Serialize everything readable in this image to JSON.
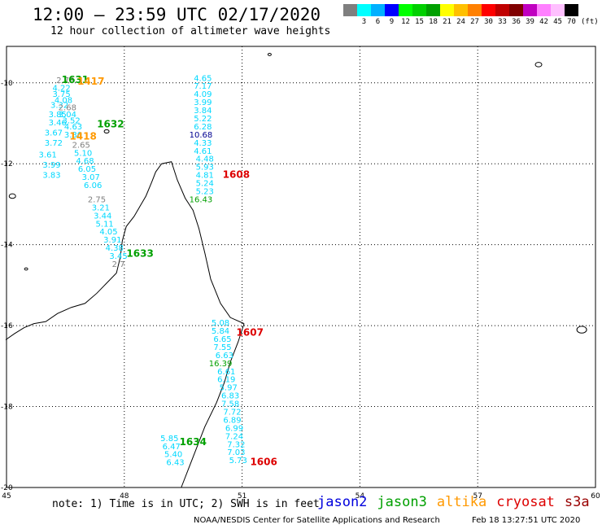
{
  "header": {
    "title": "12:00 – 23:59 UTC 02/17/2020",
    "subtitle": "12 hour collection of altimeter wave heights"
  },
  "colorbar": {
    "colors": [
      "#7f7f7f",
      "#00ffff",
      "#00b0ff",
      "#0000ff",
      "#00ff00",
      "#00d000",
      "#00a000",
      "#ffff00",
      "#ffc000",
      "#ff8000",
      "#ff0000",
      "#c00000",
      "#800000",
      "#c000c0",
      "#ff80ff",
      "#ffc0ff",
      "#000000"
    ],
    "labels": [
      "",
      "3",
      "6",
      "9",
      "12",
      "15",
      "18",
      "21",
      "24",
      "27",
      "30",
      "33",
      "36",
      "39",
      "42",
      "45",
      "70"
    ],
    "unit": "(ft)"
  },
  "axes": {
    "lon_ticks": [
      "45",
      "48",
      "51",
      "54",
      "57",
      "60"
    ],
    "lat_ticks": [
      "-10",
      "-12",
      "-14",
      "-16",
      "-18",
      "-20"
    ]
  },
  "colors": {
    "jason2": "#0000dd",
    "jason3": "#00a000",
    "altika": "#ff9900",
    "cryosat": "#dd0000",
    "s3a": "#990000",
    "cyan": "#00d8ff",
    "gray": "#808080",
    "darkblue": "#000090"
  },
  "observations": [
    {
      "lon": 46.5,
      "lat": -10.0,
      "v": "2.73",
      "c": "gray"
    },
    {
      "lon": 46.4,
      "lat": -10.2,
      "v": "4.22",
      "c": "cyan"
    },
    {
      "lon": 46.4,
      "lat": -10.35,
      "v": "3.75",
      "c": "cyan"
    },
    {
      "lon": 46.45,
      "lat": -10.5,
      "v": "4.08",
      "c": "cyan"
    },
    {
      "lon": 46.35,
      "lat": -10.62,
      "v": "3.32",
      "c": "cyan"
    },
    {
      "lon": 46.55,
      "lat": -10.68,
      "v": "2.68",
      "c": "gray"
    },
    {
      "lon": 46.3,
      "lat": -10.85,
      "v": "3.85",
      "c": "cyan"
    },
    {
      "lon": 46.55,
      "lat": -10.85,
      "v": "3.04",
      "c": "cyan"
    },
    {
      "lon": 46.3,
      "lat": -11.05,
      "v": "3.46",
      "c": "cyan"
    },
    {
      "lon": 46.65,
      "lat": -11.0,
      "v": "3.52",
      "c": "cyan"
    },
    {
      "lon": 46.7,
      "lat": -11.15,
      "v": "4.63",
      "c": "cyan"
    },
    {
      "lon": 46.2,
      "lat": -11.3,
      "v": "3.67",
      "c": "cyan"
    },
    {
      "lon": 46.7,
      "lat": -11.35,
      "v": "3.30",
      "c": "cyan"
    },
    {
      "lon": 46.2,
      "lat": -11.55,
      "v": "3.72",
      "c": "cyan"
    },
    {
      "lon": 46.9,
      "lat": -11.6,
      "v": "2.65",
      "c": "gray"
    },
    {
      "lon": 46.05,
      "lat": -11.85,
      "v": "3.61",
      "c": "cyan"
    },
    {
      "lon": 46.95,
      "lat": -11.8,
      "v": "5.10",
      "c": "cyan"
    },
    {
      "lon": 46.15,
      "lat": -12.1,
      "v": "3.99",
      "c": "cyan"
    },
    {
      "lon": 47.0,
      "lat": -12.0,
      "v": "4.68",
      "c": "cyan"
    },
    {
      "lon": 47.05,
      "lat": -12.2,
      "v": "6.05",
      "c": "cyan"
    },
    {
      "lon": 46.15,
      "lat": -12.35,
      "v": "3.83",
      "c": "cyan"
    },
    {
      "lon": 47.15,
      "lat": -12.4,
      "v": "3.07",
      "c": "cyan"
    },
    {
      "lon": 47.2,
      "lat": -12.6,
      "v": "6.06",
      "c": "cyan"
    },
    {
      "lon": 47.3,
      "lat": -12.95,
      "v": "2.75",
      "c": "gray"
    },
    {
      "lon": 47.4,
      "lat": -13.15,
      "v": "3.21",
      "c": "cyan"
    },
    {
      "lon": 47.45,
      "lat": -13.35,
      "v": "3.44",
      "c": "cyan"
    },
    {
      "lon": 47.5,
      "lat": -13.55,
      "v": "5.11",
      "c": "cyan"
    },
    {
      "lon": 47.6,
      "lat": -13.75,
      "v": "4.05",
      "c": "cyan"
    },
    {
      "lon": 47.7,
      "lat": -13.95,
      "v": "3.91",
      "c": "cyan"
    },
    {
      "lon": 47.75,
      "lat": -14.15,
      "v": "4.38",
      "c": "cyan"
    },
    {
      "lon": 47.85,
      "lat": -14.35,
      "v": "3.45",
      "c": "cyan"
    },
    {
      "lon": 47.85,
      "lat": -14.55,
      "v": "2.7",
      "c": "gray"
    },
    {
      "lon": 50.0,
      "lat": -9.95,
      "v": "4.65",
      "c": "cyan"
    },
    {
      "lon": 50.0,
      "lat": -10.15,
      "v": "7.17",
      "c": "cyan"
    },
    {
      "lon": 50.0,
      "lat": -10.35,
      "v": "4.09",
      "c": "cyan"
    },
    {
      "lon": 50.0,
      "lat": -10.55,
      "v": "3.99",
      "c": "cyan"
    },
    {
      "lon": 50.0,
      "lat": -10.75,
      "v": "3.84",
      "c": "cyan"
    },
    {
      "lon": 50.0,
      "lat": -10.95,
      "v": "5.22",
      "c": "cyan"
    },
    {
      "lon": 50.0,
      "lat": -11.15,
      "v": "6.28",
      "c": "cyan"
    },
    {
      "lon": 49.95,
      "lat": -11.35,
      "v": "10.68",
      "c": "darkblue"
    },
    {
      "lon": 50.0,
      "lat": -11.55,
      "v": "4.33",
      "c": "cyan"
    },
    {
      "lon": 50.0,
      "lat": -11.75,
      "v": "4.61",
      "c": "cyan"
    },
    {
      "lon": 50.05,
      "lat": -11.95,
      "v": "4.48",
      "c": "cyan"
    },
    {
      "lon": 50.05,
      "lat": -12.15,
      "v": "5.93",
      "c": "cyan"
    },
    {
      "lon": 50.05,
      "lat": -12.35,
      "v": "4.81",
      "c": "cyan"
    },
    {
      "lon": 50.05,
      "lat": -12.55,
      "v": "5.24",
      "c": "cyan"
    },
    {
      "lon": 50.05,
      "lat": -12.75,
      "v": "5.23",
      "c": "cyan"
    },
    {
      "lon": 49.95,
      "lat": -12.95,
      "v": "16.43",
      "c": "jason3"
    },
    {
      "lon": 50.45,
      "lat": -16.0,
      "v": "5.08",
      "c": "cyan"
    },
    {
      "lon": 50.45,
      "lat": -16.2,
      "v": "5.84",
      "c": "cyan"
    },
    {
      "lon": 50.5,
      "lat": -16.4,
      "v": "6.65",
      "c": "cyan"
    },
    {
      "lon": 50.5,
      "lat": -16.6,
      "v": "7.55",
      "c": "cyan"
    },
    {
      "lon": 50.55,
      "lat": -16.8,
      "v": "6.63",
      "c": "cyan"
    },
    {
      "lon": 50.45,
      "lat": -17.0,
      "v": "16.39",
      "c": "jason3"
    },
    {
      "lon": 50.6,
      "lat": -17.2,
      "v": "6.61",
      "c": "cyan"
    },
    {
      "lon": 50.6,
      "lat": -17.4,
      "v": "6.19",
      "c": "cyan"
    },
    {
      "lon": 50.65,
      "lat": -17.6,
      "v": "5.97",
      "c": "cyan"
    },
    {
      "lon": 50.7,
      "lat": -17.8,
      "v": "6.83",
      "c": "cyan"
    },
    {
      "lon": 50.7,
      "lat": -18.0,
      "v": "7.58",
      "c": "cyan"
    },
    {
      "lon": 50.75,
      "lat": -18.2,
      "v": "7.72",
      "c": "cyan"
    },
    {
      "lon": 50.75,
      "lat": -18.4,
      "v": "6.89",
      "c": "cyan"
    },
    {
      "lon": 50.8,
      "lat": -18.6,
      "v": "6.99",
      "c": "cyan"
    },
    {
      "lon": 50.8,
      "lat": -18.8,
      "v": "7.24",
      "c": "cyan"
    },
    {
      "lon": 50.85,
      "lat": -19.0,
      "v": "7.32",
      "c": "cyan"
    },
    {
      "lon": 50.85,
      "lat": -19.2,
      "v": "7.03",
      "c": "cyan"
    },
    {
      "lon": 50.9,
      "lat": -19.4,
      "v": "5.73",
      "c": "cyan"
    },
    {
      "lon": 49.15,
      "lat": -18.85,
      "v": "5.85",
      "c": "cyan"
    },
    {
      "lon": 49.2,
      "lat": -19.05,
      "v": "6.47",
      "c": "cyan"
    },
    {
      "lon": 49.25,
      "lat": -19.25,
      "v": "5.40",
      "c": "cyan"
    },
    {
      "lon": 49.3,
      "lat": -19.45,
      "v": "6.43",
      "c": "cyan"
    }
  ],
  "tracks": [
    {
      "lon": 46.75,
      "lat": -10.0,
      "id": "1631",
      "c": "jason3"
    },
    {
      "lon": 47.15,
      "lat": -10.05,
      "id": "1417",
      "c": "altika"
    },
    {
      "lon": 47.65,
      "lat": -11.1,
      "id": "1632",
      "c": "jason3"
    },
    {
      "lon": 46.95,
      "lat": -11.4,
      "id": "1418",
      "c": "altika"
    },
    {
      "lon": 50.85,
      "lat": -12.35,
      "id": "1608",
      "c": "cryosat"
    },
    {
      "lon": 48.4,
      "lat": -14.3,
      "id": "1633",
      "c": "jason3"
    },
    {
      "lon": 51.2,
      "lat": -16.25,
      "id": "1607",
      "c": "cryosat"
    },
    {
      "lon": 49.75,
      "lat": -18.95,
      "id": "1634",
      "c": "jason3"
    },
    {
      "lon": 51.55,
      "lat": -19.45,
      "id": "1606",
      "c": "cryosat"
    }
  ],
  "footer": {
    "note": "note: 1) Time is in UTC; 2) SWH is in feet",
    "credit": "NOAA/NESDIS Center for Satellite Applications and Research",
    "timestamp": "Feb 18 13:27:51 UTC 2020",
    "satellites": [
      {
        "name": "jason2",
        "c": "jason2"
      },
      {
        "name": "jason3",
        "c": "jason3"
      },
      {
        "name": "altika",
        "c": "altika"
      },
      {
        "name": "cryosat",
        "c": "cryosat"
      },
      {
        "name": "s3a",
        "c": "s3a"
      }
    ]
  }
}
